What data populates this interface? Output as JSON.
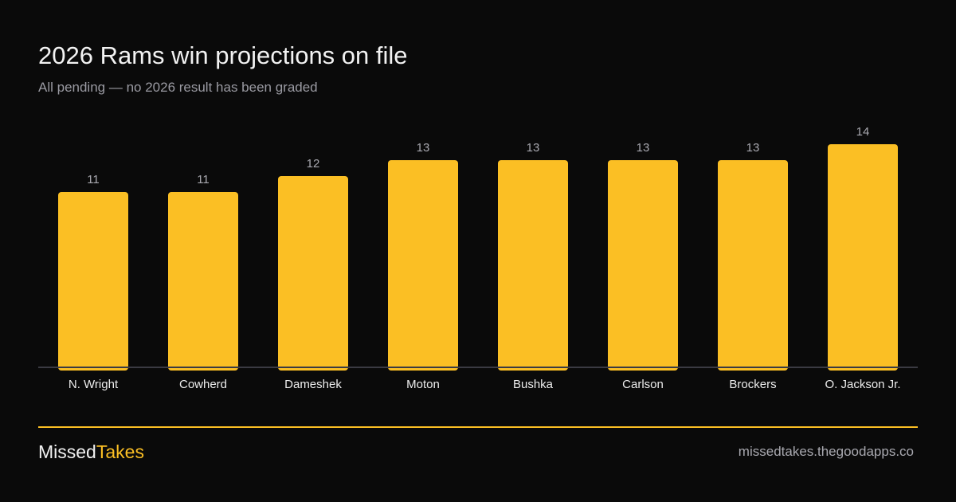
{
  "header": {
    "title": "2026 Rams win projections on file",
    "subtitle": "All pending — no 2026 result has been graded"
  },
  "chart_data": {
    "type": "bar",
    "categories": [
      "N. Wright",
      "Cowherd",
      "Dameshek",
      "Moton",
      "Bushka",
      "Carlson",
      "Brockers",
      "O. Jackson Jr."
    ],
    "values": [
      11,
      11,
      12,
      13,
      13,
      13,
      13,
      14
    ],
    "data_labels": true,
    "grid": false,
    "bar_color": "#fbbf24",
    "ylim": [
      0,
      14
    ]
  },
  "footer": {
    "brand_part1": "Missed",
    "brand_part2": "Takes",
    "brand_accent_color": "#fbbf24",
    "website": "missedtakes.thegoodapps.co"
  }
}
